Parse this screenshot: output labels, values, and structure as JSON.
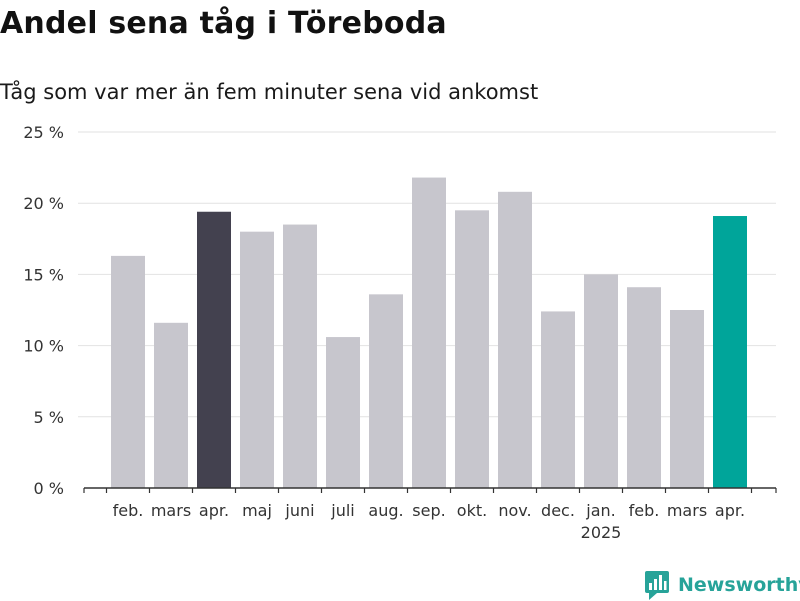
{
  "header": {
    "title": "Andel sena tåg i Töreboda",
    "subtitle": "Tåg som var mer än fem minuter sena vid ankomst"
  },
  "brand": {
    "name": "Newsworthy",
    "icon": "newsworthy-logo-icon",
    "color": "#27a399"
  },
  "chart_data": {
    "type": "bar",
    "title": "Andel sena tåg i Töreboda",
    "subtitle": "Tåg som var mer än fem minuter sena vid ankomst",
    "xlabel": "",
    "ylabel": "",
    "y_unit": "%",
    "ylim": [
      0,
      25
    ],
    "yticks": [
      0,
      5,
      10,
      15,
      20,
      25
    ],
    "ytick_labels": [
      "0 %",
      "5 %",
      "10 %",
      "15 %",
      "20 %",
      "25 %"
    ],
    "grid": true,
    "categories": [
      "feb.",
      "mars",
      "apr.",
      "maj",
      "juni",
      "juli",
      "aug.",
      "sep.",
      "okt.",
      "nov.",
      "dec.",
      "jan.",
      "feb.",
      "mars",
      "apr."
    ],
    "year_label": {
      "text": "2025",
      "under_category_index": 11
    },
    "values": [
      16.3,
      11.6,
      19.4,
      18.0,
      18.5,
      10.6,
      13.6,
      21.8,
      19.5,
      20.8,
      12.4,
      15.0,
      14.1,
      12.5,
      19.1
    ],
    "highlight": {
      "2": "#43414f",
      "14": "#00a59a"
    },
    "colors": {
      "default": "#c7c6cd",
      "grid": "#e2e2e2",
      "axis": "#333333"
    }
  }
}
